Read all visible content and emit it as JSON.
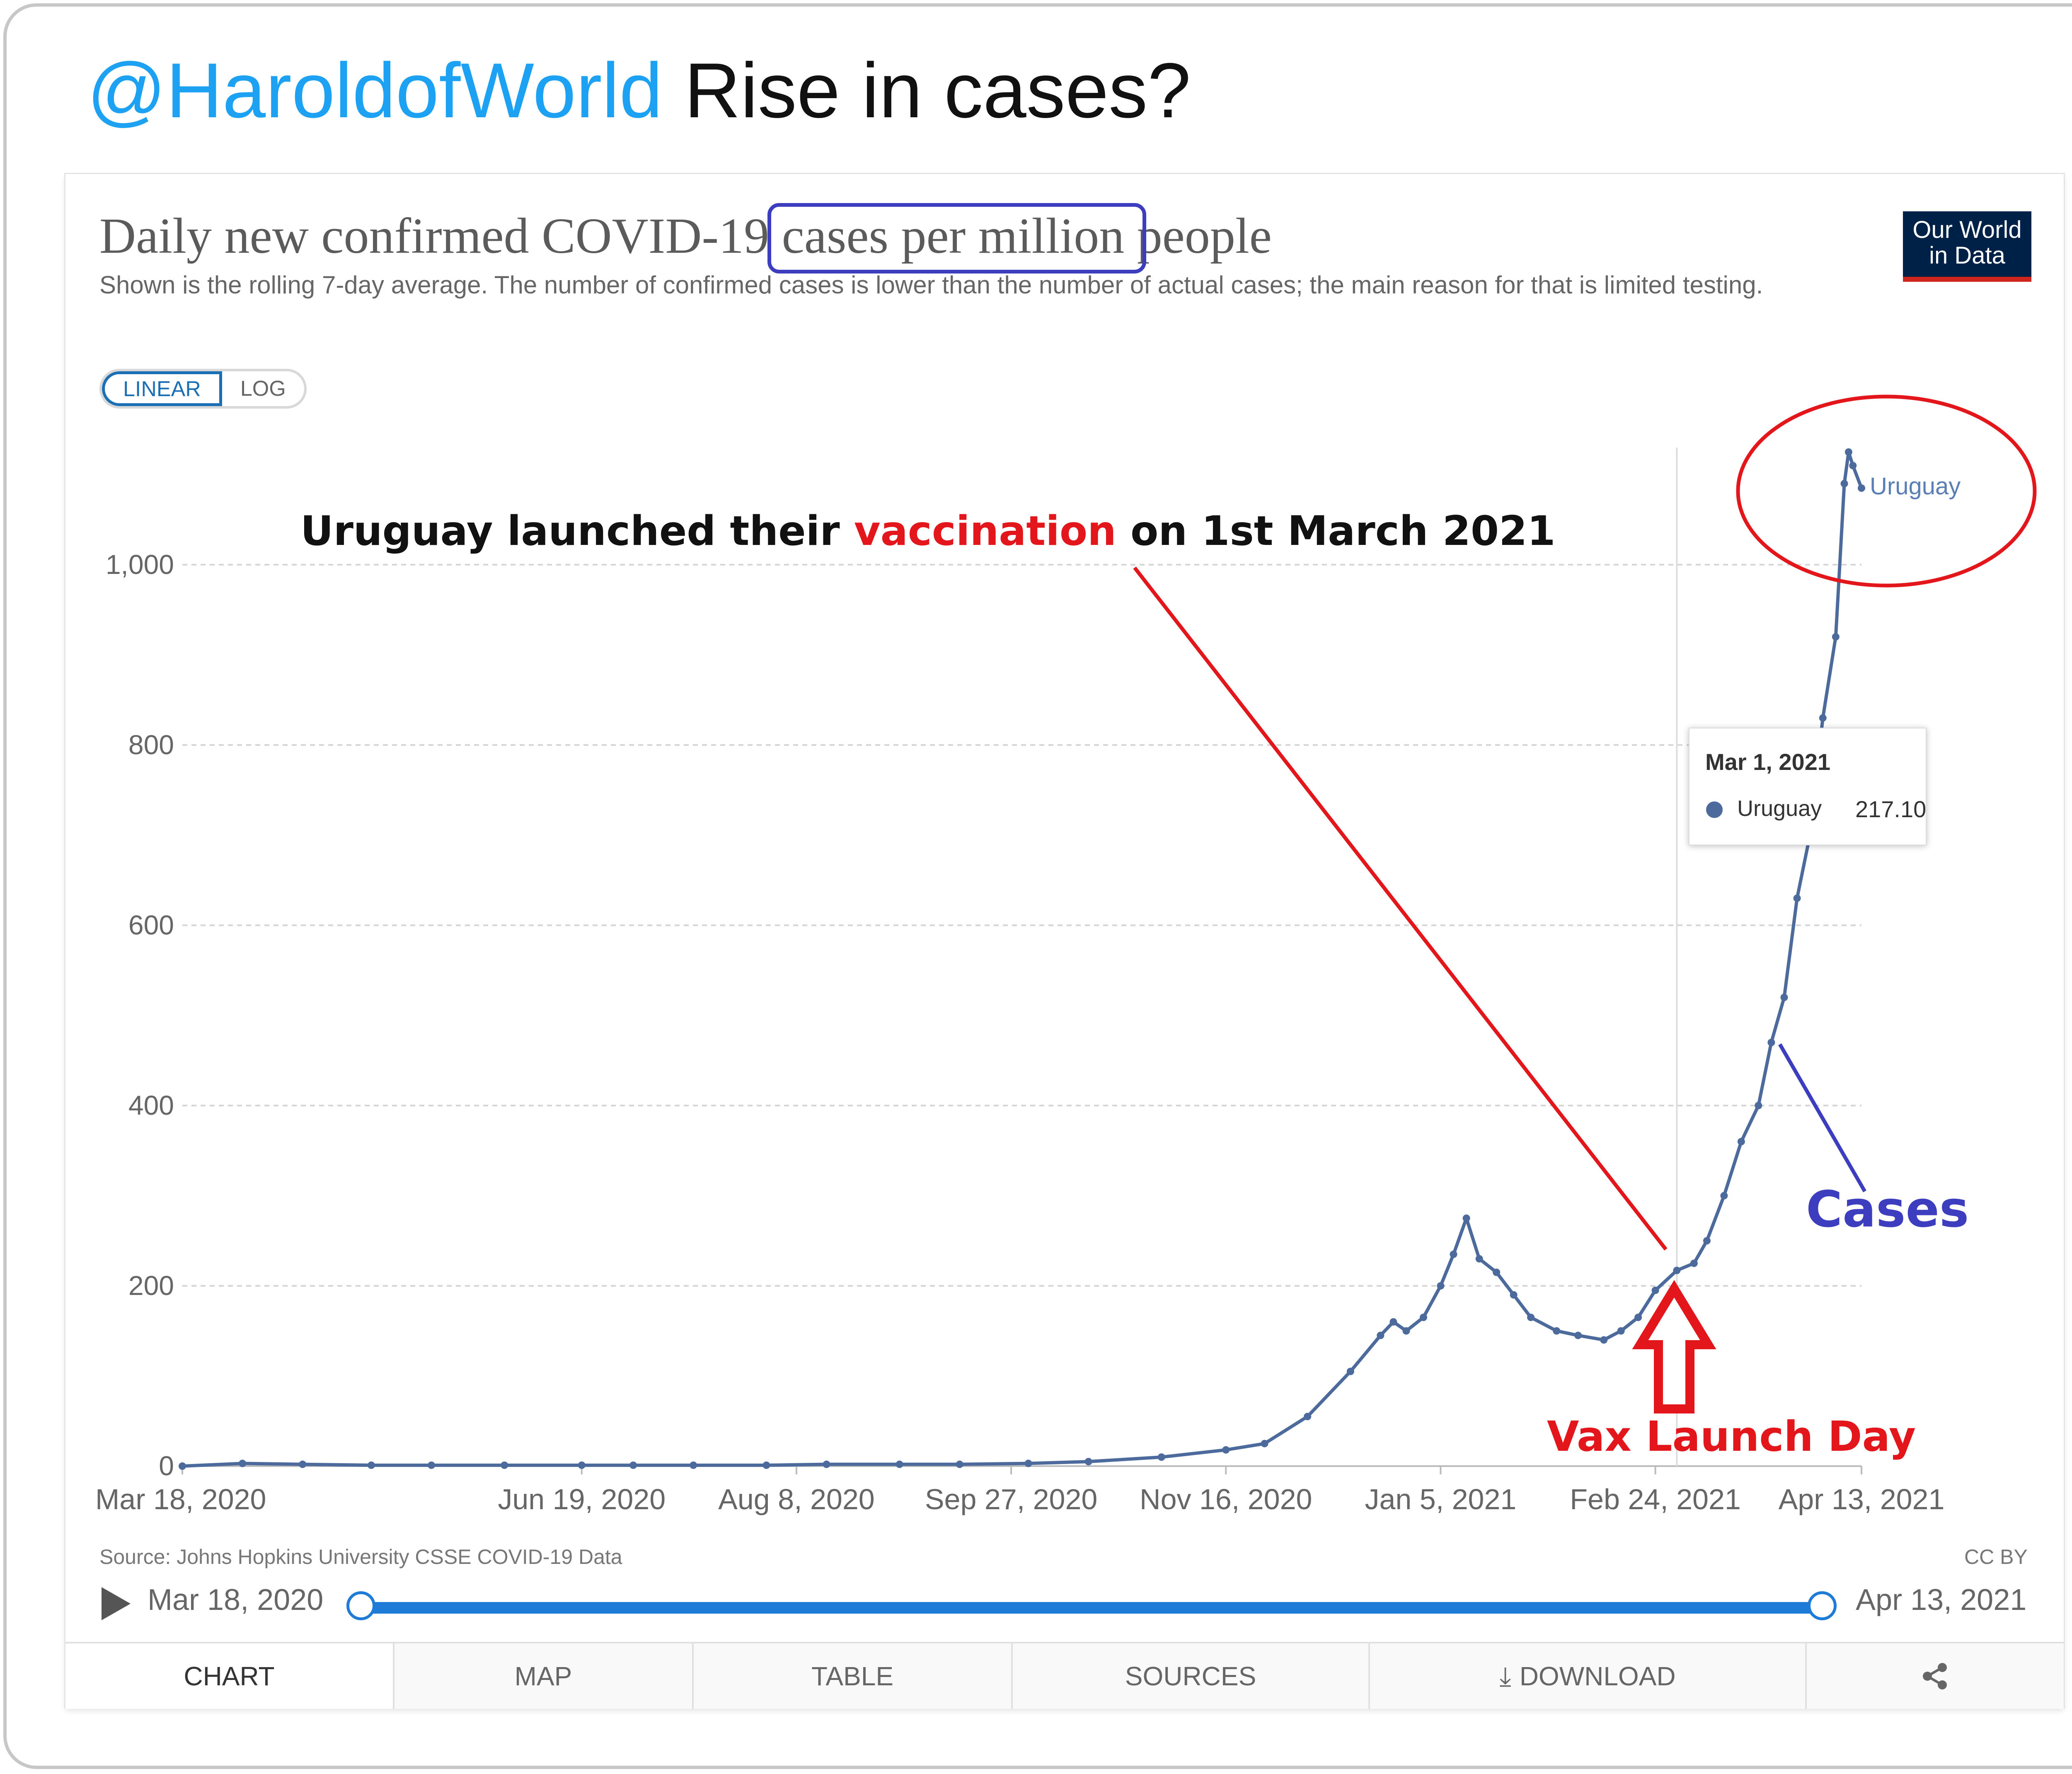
{
  "tweet": {
    "handle": "@HaroldofWorld",
    "text": "Rise in cases?"
  },
  "chart": {
    "title": "Daily new confirmed COVID-19 cases per million people",
    "subtitle": "Shown is the rolling 7-day average. The number of confirmed cases is lower than the number of actual cases; the main reason for that is limited testing.",
    "logo": [
      "Our World",
      "in Data"
    ],
    "scale_toggle": {
      "linear": "LINEAR",
      "log": "LOG",
      "active": "LINEAR"
    },
    "source": "Source: Johns Hopkins University CSSE COVID-19 Data",
    "license": "CC BY"
  },
  "annotations": {
    "vax_pre": "Uruguay launched their ",
    "vax_word": "vaccination",
    "vax_post": " on 1st March 2021",
    "cases": "Cases",
    "launch_day": "Vax Launch Day"
  },
  "tooltip": {
    "date": "Mar 1, 2021",
    "series": "Uruguay",
    "value": "217.10"
  },
  "timeline": {
    "start": "Mar 18, 2020",
    "end": "Apr 13, 2021"
  },
  "tabs": [
    "CHART",
    "MAP",
    "TABLE",
    "SOURCES",
    "DOWNLOAD",
    ""
  ],
  "colors": {
    "series": "#4c6a9c",
    "accent": "#1f7bd8",
    "annotation_red": "#e3161b",
    "annotation_blue": "#3d3dbf",
    "handle": "#1da1f2"
  },
  "chart_data": {
    "type": "line",
    "title": "Daily new confirmed COVID-19 cases per million people",
    "xlabel": "",
    "ylabel": "",
    "ylim": [
      0,
      1130
    ],
    "y_ticks": [
      0,
      200,
      400,
      600,
      800,
      1000
    ],
    "y_tick_labels": [
      "0",
      "200",
      "400",
      "600",
      "800",
      "1,000"
    ],
    "x_ticks": [
      "2020-03-18",
      "2020-06-19",
      "2020-08-08",
      "2020-09-27",
      "2020-11-16",
      "2021-01-05",
      "2021-02-24",
      "2021-04-13"
    ],
    "x_tick_labels": [
      "Mar 18, 2020",
      "Jun 19, 2020",
      "Aug 8, 2020",
      "Sep 27, 2020",
      "Nov 16, 2020",
      "Jan 5, 2021",
      "Feb 24, 2021",
      "Apr 13, 2021"
    ],
    "grid": "horizontal",
    "highlight_date": "2021-03-01",
    "series": [
      {
        "name": "Uruguay",
        "points": [
          [
            "2020-03-18",
            0
          ],
          [
            "2020-04-01",
            3
          ],
          [
            "2020-04-15",
            2
          ],
          [
            "2020-05-01",
            1
          ],
          [
            "2020-05-15",
            1
          ],
          [
            "2020-06-01",
            1
          ],
          [
            "2020-06-19",
            1
          ],
          [
            "2020-07-01",
            1
          ],
          [
            "2020-07-15",
            1
          ],
          [
            "2020-08-01",
            1
          ],
          [
            "2020-08-15",
            2
          ],
          [
            "2020-09-01",
            2
          ],
          [
            "2020-09-15",
            2
          ],
          [
            "2020-10-01",
            3
          ],
          [
            "2020-10-15",
            5
          ],
          [
            "2020-11-01",
            10
          ],
          [
            "2020-11-16",
            18
          ],
          [
            "2020-11-25",
            25
          ],
          [
            "2020-12-05",
            55
          ],
          [
            "2020-12-15",
            105
          ],
          [
            "2020-12-22",
            145
          ],
          [
            "2020-12-25",
            160
          ],
          [
            "2020-12-28",
            150
          ],
          [
            "2021-01-01",
            165
          ],
          [
            "2021-01-05",
            200
          ],
          [
            "2021-01-08",
            235
          ],
          [
            "2021-01-11",
            275
          ],
          [
            "2021-01-14",
            230
          ],
          [
            "2021-01-18",
            215
          ],
          [
            "2021-01-22",
            190
          ],
          [
            "2021-01-26",
            165
          ],
          [
            "2021-02-01",
            150
          ],
          [
            "2021-02-06",
            145
          ],
          [
            "2021-02-12",
            140
          ],
          [
            "2021-02-16",
            150
          ],
          [
            "2021-02-20",
            165
          ],
          [
            "2021-02-24",
            195
          ],
          [
            "2021-03-01",
            217.1
          ],
          [
            "2021-03-05",
            225
          ],
          [
            "2021-03-08",
            250
          ],
          [
            "2021-03-12",
            300
          ],
          [
            "2021-03-16",
            360
          ],
          [
            "2021-03-20",
            400
          ],
          [
            "2021-03-23",
            470
          ],
          [
            "2021-03-26",
            520
          ],
          [
            "2021-03-29",
            630
          ],
          [
            "2021-04-01",
            700
          ],
          [
            "2021-04-04",
            830
          ],
          [
            "2021-04-07",
            920
          ],
          [
            "2021-04-09",
            1090
          ],
          [
            "2021-04-10",
            1125
          ],
          [
            "2021-04-11",
            1110
          ],
          [
            "2021-04-13",
            1085
          ]
        ]
      }
    ]
  }
}
